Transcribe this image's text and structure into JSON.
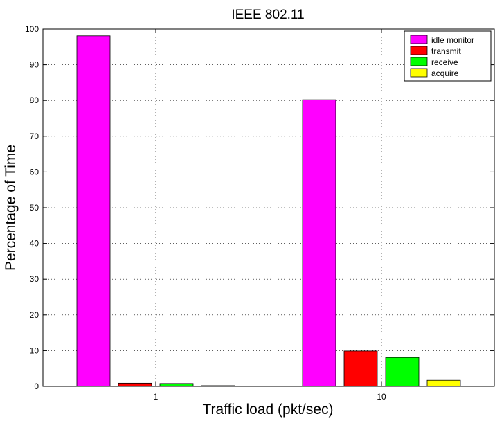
{
  "chart_data": {
    "type": "bar",
    "title": "IEEE 802.11",
    "xlabel": "Traffic load (pkt/sec)",
    "ylabel": "Percentage of Time",
    "categories": [
      "1",
      "10"
    ],
    "ylim": [
      0,
      100
    ],
    "yticks": [
      0,
      10,
      20,
      30,
      40,
      50,
      60,
      70,
      80,
      90,
      100
    ],
    "grid": true,
    "legend_position": "top-right",
    "series": [
      {
        "name": "idle monitor",
        "color": "#ff00ff",
        "values": [
          98.1,
          80.2
        ]
      },
      {
        "name": "transmit",
        "color": "#ff0000",
        "values": [
          0.9,
          9.9
        ]
      },
      {
        "name": "receive",
        "color": "#00ff00",
        "values": [
          0.8,
          8.1
        ]
      },
      {
        "name": "acquire",
        "color": "#ffff00",
        "values": [
          0.2,
          1.7
        ]
      }
    ]
  }
}
